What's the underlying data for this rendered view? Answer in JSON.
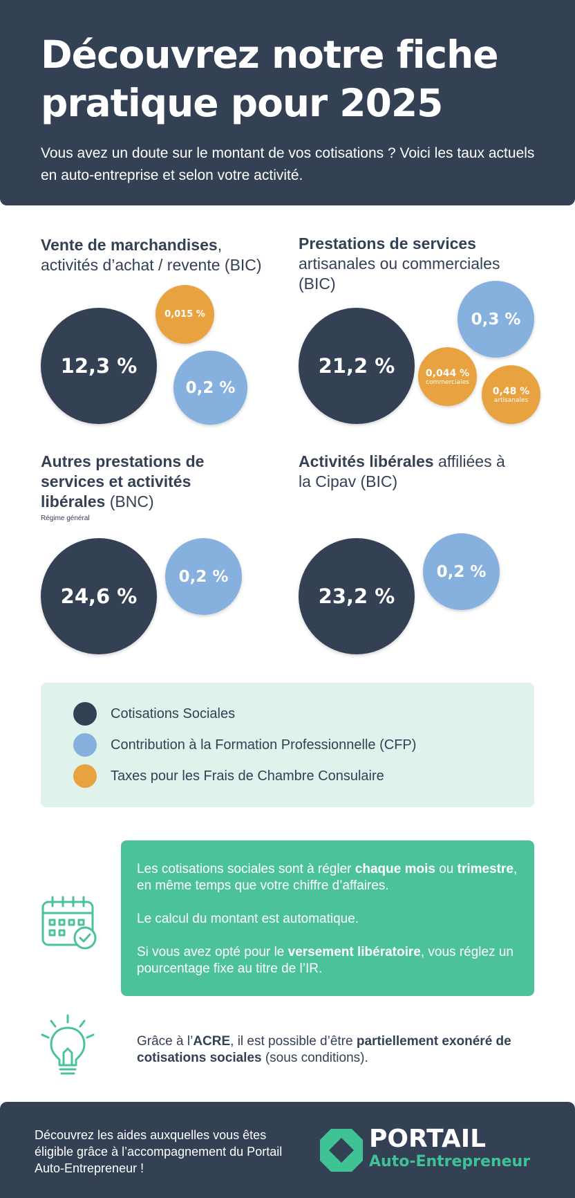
{
  "header": {
    "title": "Découvrez notre fiche pratique pour 2025",
    "subtitle": "Vous avez un doute sur le montant de vos cotisations ? Voici les taux actuels en auto-entreprise et selon votre activité."
  },
  "groups": [
    {
      "title_bold": "Vente de marchandises",
      "title_rest": ", activités d’achat / revente (BIC)",
      "bubbles": [
        {
          "value": "12,3 %",
          "kind": "cotisations"
        },
        {
          "value": "0,015 %",
          "kind": "taxes"
        },
        {
          "value": "0,2 %",
          "kind": "cfp"
        }
      ]
    },
    {
      "title_bold": "Prestations de services",
      "title_rest": " artisanales ou commerciales (BIC)",
      "bubbles": [
        {
          "value": "21,2 %",
          "kind": "cotisations"
        },
        {
          "value": "0,3 %",
          "kind": "cfp"
        },
        {
          "value": "0,044 %",
          "sub": "commerciales",
          "kind": "taxes"
        },
        {
          "value": "0,48 %",
          "sub": "artisanales",
          "kind": "taxes"
        }
      ]
    },
    {
      "title_bold": "Autres prestations de services et activités libérales",
      "title_rest": " (BNC)",
      "note": "Régime général",
      "bubbles": [
        {
          "value": "24,6 %",
          "kind": "cotisations"
        },
        {
          "value": "0,2 %",
          "kind": "cfp"
        }
      ]
    },
    {
      "title_bold": "Activités libérales",
      "title_rest": " affiliées à la Cipav (BIC)",
      "bubbles": [
        {
          "value": "23,2 %",
          "kind": "cotisations"
        },
        {
          "value": "0,2 %",
          "kind": "cfp"
        }
      ]
    }
  ],
  "legend": {
    "items": [
      {
        "label": "Cotisations Sociales",
        "color": "#344054"
      },
      {
        "label": "Contribution à la Formation Professionnelle (CFP)",
        "color": "#86b1de"
      },
      {
        "label": "Taxes pour les Frais de Chambre Consulaire",
        "color": "#e8a23f"
      }
    ]
  },
  "info": {
    "icon": "calendar-check-icon",
    "p1_a": "Les cotisations sociales sont à régler ",
    "p1_b": "chaque mois",
    "p1_c": " ou ",
    "p1_d": "trimestre",
    "p1_e": ", en même temps que votre chiffre d’affaires.",
    "p2": "Le calcul du montant est automatique.",
    "p3_a": "Si vous avez opté pour le ",
    "p3_b": "versement libératoire",
    "p3_c": ", vous réglez un pourcentage fixe au titre de l’IR."
  },
  "acre": {
    "icon": "lightbulb-icon",
    "a": "Grâce à l’",
    "b": "ACRE",
    "c": ", il est possible d’être ",
    "d": "partiellement exonéré de cotisations sociales",
    "e": " (sous conditions)."
  },
  "footer": {
    "text": "Découvrez les aides auxquelles vous êtes éligible grâce à l’accompagnement du Portail Auto-Entrepreneur !",
    "brand_line1": "PORTAIL",
    "brand_line2": "Auto-Entrepreneur",
    "colors": {
      "accent": "#3fc394",
      "dark": "#344054"
    }
  }
}
